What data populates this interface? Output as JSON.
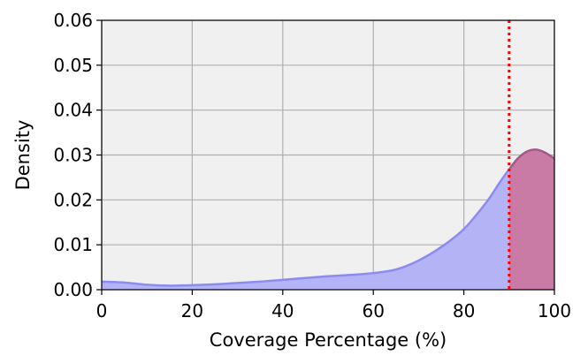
{
  "chart_data": {
    "type": "area",
    "xlabel": "Coverage Percentage (%)",
    "ylabel": "Density",
    "xlim": [
      0,
      100
    ],
    "ylim": [
      0,
      0.06
    ],
    "x_ticks": [
      0,
      20,
      40,
      60,
      80,
      100
    ],
    "y_ticks": [
      0.0,
      0.01,
      0.02,
      0.03,
      0.04,
      0.05,
      0.06
    ],
    "x_tick_labels": [
      "0",
      "20",
      "40",
      "60",
      "80",
      "100"
    ],
    "y_tick_labels": [
      "0.00",
      "0.01",
      "0.02",
      "0.03",
      "0.04",
      "0.05",
      "0.06"
    ],
    "grid": true,
    "series": [
      {
        "x": [
          0,
          5,
          10,
          15,
          20,
          25,
          30,
          35,
          40,
          45,
          50,
          55,
          60,
          65,
          70,
          75,
          80,
          85,
          88,
          90,
          92,
          94,
          96,
          98,
          100
        ],
        "y": [
          0.0018,
          0.0016,
          0.0011,
          0.0009,
          0.001,
          0.0012,
          0.0015,
          0.0018,
          0.0022,
          0.0026,
          0.003,
          0.0033,
          0.0037,
          0.0045,
          0.0065,
          0.0095,
          0.0135,
          0.0195,
          0.024,
          0.0268,
          0.0293,
          0.0308,
          0.0312,
          0.0305,
          0.0292
        ]
      }
    ],
    "threshold": 90,
    "colors": {
      "plot_background": "#f0f0f0",
      "grid": "#b0b0b0",
      "fill": "#b3b3f5",
      "line": "#8c8cf0",
      "highlight_fill": "#c97aa5",
      "highlight_line": "#a05c88",
      "threshold_line": "#ff0000"
    }
  }
}
